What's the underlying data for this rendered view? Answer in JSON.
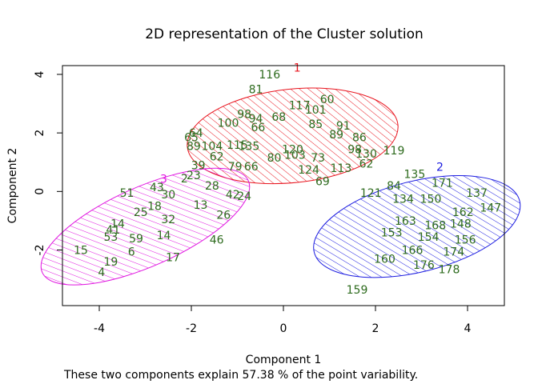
{
  "chart_data": {
    "type": "scatter",
    "title": "2D representation of the Cluster solution",
    "xlabel": "Component 1",
    "ylabel": "Component 2",
    "note": "These two components explain 57.38 % of the point variability.",
    "xlim": [
      -4.8,
      4.8
    ],
    "ylim": [
      -3.9,
      4.3
    ],
    "xticks": [
      -4,
      -2,
      0,
      2,
      4
    ],
    "yticks": [
      -2,
      0,
      2,
      4
    ],
    "xtick_labels": [
      "-4",
      "-2",
      "0",
      "2",
      "4"
    ],
    "ytick_labels": [
      "-2",
      "0",
      "2",
      "4"
    ],
    "grid": false,
    "label_color": "#2e6b1e",
    "clusters": [
      {
        "label": "1",
        "color": "#e8141e",
        "center": [
          0.2,
          1.9
        ],
        "rx": 2.3,
        "ry": 1.6,
        "angle_deg": 6
      },
      {
        "label": "2",
        "color": "#1a1ae0",
        "center": [
          2.9,
          -1.2
        ],
        "rx": 2.3,
        "ry": 1.55,
        "angle_deg": 14
      },
      {
        "label": "3",
        "color": "#e014e0",
        "center": [
          -3.0,
          -1.2
        ],
        "rx": 2.45,
        "ry": 1.35,
        "angle_deg": 24
      }
    ],
    "cluster_label_positions": [
      [
        0.3,
        4.1
      ],
      [
        3.4,
        0.7
      ],
      [
        -2.6,
        0.3
      ]
    ],
    "points": [
      {
        "label": "116",
        "x": -0.3,
        "y": 4.0
      },
      {
        "label": "81",
        "x": -0.6,
        "y": 3.5
      },
      {
        "label": "117",
        "x": 0.35,
        "y": 2.95
      },
      {
        "label": "60",
        "x": 0.95,
        "y": 3.15
      },
      {
        "label": "101",
        "x": 0.7,
        "y": 2.8
      },
      {
        "label": "98",
        "x": -0.85,
        "y": 2.65
      },
      {
        "label": "94",
        "x": -0.6,
        "y": 2.5
      },
      {
        "label": "68",
        "x": -0.1,
        "y": 2.55
      },
      {
        "label": "100",
        "x": -1.2,
        "y": 2.35
      },
      {
        "label": "66",
        "x": -0.55,
        "y": 2.2
      },
      {
        "label": "85",
        "x": 0.7,
        "y": 2.3
      },
      {
        "label": "91",
        "x": 1.3,
        "y": 2.25
      },
      {
        "label": "89",
        "x": 1.15,
        "y": 1.95
      },
      {
        "label": "86",
        "x": 1.65,
        "y": 1.85
      },
      {
        "label": "64",
        "x": -1.9,
        "y": 2.0
      },
      {
        "label": "65",
        "x": -2.0,
        "y": 1.85
      },
      {
        "label": "89",
        "x": -1.95,
        "y": 1.55
      },
      {
        "label": "104",
        "x": -1.55,
        "y": 1.55
      },
      {
        "label": "115",
        "x": -1.0,
        "y": 1.6
      },
      {
        "label": "135",
        "x": -0.75,
        "y": 1.55
      },
      {
        "label": "120",
        "x": 0.2,
        "y": 1.45
      },
      {
        "label": "80",
        "x": -0.2,
        "y": 1.15
      },
      {
        "label": "103",
        "x": 0.25,
        "y": 1.25
      },
      {
        "label": "73",
        "x": 0.75,
        "y": 1.15
      },
      {
        "label": "98",
        "x": 1.55,
        "y": 1.45
      },
      {
        "label": "130",
        "x": 1.8,
        "y": 1.3
      },
      {
        "label": "119",
        "x": 2.4,
        "y": 1.4
      },
      {
        "label": "62",
        "x": 1.8,
        "y": 0.95
      },
      {
        "label": "113",
        "x": 1.25,
        "y": 0.8
      },
      {
        "label": "124",
        "x": 0.55,
        "y": 0.75
      },
      {
        "label": "79",
        "x": -1.05,
        "y": 0.85
      },
      {
        "label": "66",
        "x": -0.7,
        "y": 0.85
      },
      {
        "label": "39",
        "x": -1.85,
        "y": 0.9
      },
      {
        "label": "62",
        "x": -1.45,
        "y": 1.2
      },
      {
        "label": "69",
        "x": 0.85,
        "y": 0.35
      },
      {
        "label": "121",
        "x": 1.9,
        "y": -0.05
      },
      {
        "label": "84",
        "x": 2.4,
        "y": 0.2
      },
      {
        "label": "135",
        "x": 2.85,
        "y": 0.6
      },
      {
        "label": "171",
        "x": 3.45,
        "y": 0.3
      },
      {
        "label": "137",
        "x": 4.2,
        "y": -0.05
      },
      {
        "label": "147",
        "x": 4.5,
        "y": -0.55
      },
      {
        "label": "150",
        "x": 3.2,
        "y": -0.25
      },
      {
        "label": "134",
        "x": 2.6,
        "y": -0.25
      },
      {
        "label": "162",
        "x": 3.9,
        "y": -0.7
      },
      {
        "label": "163",
        "x": 2.65,
        "y": -1.0
      },
      {
        "label": "153",
        "x": 2.35,
        "y": -1.4
      },
      {
        "label": "168",
        "x": 3.3,
        "y": -1.15
      },
      {
        "label": "148",
        "x": 3.85,
        "y": -1.1
      },
      {
        "label": "154",
        "x": 3.15,
        "y": -1.55
      },
      {
        "label": "156",
        "x": 3.95,
        "y": -1.65
      },
      {
        "label": "166",
        "x": 2.8,
        "y": -2.0
      },
      {
        "label": "174",
        "x": 3.7,
        "y": -2.05
      },
      {
        "label": "160",
        "x": 2.2,
        "y": -2.3
      },
      {
        "label": "176",
        "x": 3.05,
        "y": -2.5
      },
      {
        "label": "178",
        "x": 3.6,
        "y": -2.65
      },
      {
        "label": "159",
        "x": 1.6,
        "y": -3.35
      },
      {
        "label": "51",
        "x": -3.4,
        "y": -0.05
      },
      {
        "label": "43",
        "x": -2.75,
        "y": 0.15
      },
      {
        "label": "30",
        "x": -2.5,
        "y": -0.1
      },
      {
        "label": "2",
        "x": -2.15,
        "y": 0.45
      },
      {
        "label": "23",
        "x": -1.95,
        "y": 0.55
      },
      {
        "label": "28",
        "x": -1.55,
        "y": 0.2
      },
      {
        "label": "42",
        "x": -1.1,
        "y": -0.1
      },
      {
        "label": "24",
        "x": -0.85,
        "y": -0.15
      },
      {
        "label": "13",
        "x": -1.8,
        "y": -0.45
      },
      {
        "label": "26",
        "x": -1.3,
        "y": -0.8
      },
      {
        "label": "14",
        "x": -3.6,
        "y": -1.1
      },
      {
        "label": "25",
        "x": -3.1,
        "y": -0.7
      },
      {
        "label": "18",
        "x": -2.8,
        "y": -0.5
      },
      {
        "label": "32",
        "x": -2.5,
        "y": -0.95
      },
      {
        "label": "41",
        "x": -3.7,
        "y": -1.3
      },
      {
        "label": "53",
        "x": -3.75,
        "y": -1.55
      },
      {
        "label": "59",
        "x": -3.2,
        "y": -1.6
      },
      {
        "label": "14",
        "x": -2.6,
        "y": -1.5
      },
      {
        "label": "46",
        "x": -1.45,
        "y": -1.65
      },
      {
        "label": "15",
        "x": -4.4,
        "y": -2.0
      },
      {
        "label": "6",
        "x": -3.3,
        "y": -2.05
      },
      {
        "label": "17",
        "x": -2.4,
        "y": -2.25
      },
      {
        "label": "19",
        "x": -3.75,
        "y": -2.4
      },
      {
        "label": "4",
        "x": -3.95,
        "y": -2.75
      }
    ]
  }
}
